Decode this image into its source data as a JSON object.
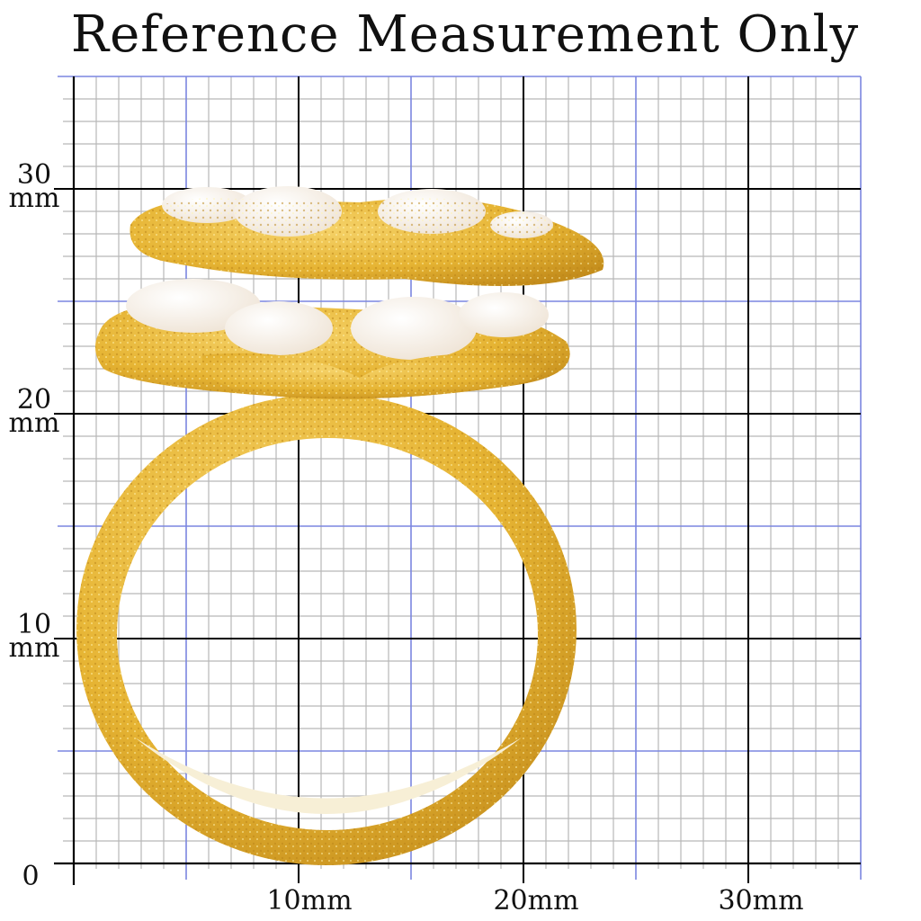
{
  "title": "Reference Measurement Only",
  "unit": "mm",
  "grid": {
    "range_mm": [
      0,
      35
    ],
    "minor_step_mm": 1,
    "mid_step_mm": 5,
    "major_step_mm": 10,
    "colors": {
      "minor": "#b8b8b8",
      "mid": "#7b86e0",
      "major": "#000000"
    }
  },
  "y_labels": [
    {
      "value": "30",
      "unit": "mm"
    },
    {
      "value": "20",
      "unit": "mm"
    },
    {
      "value": "10",
      "unit": "mm"
    }
  ],
  "origin_label": "0",
  "x_labels": [
    "10mm",
    "20mm",
    "30mm"
  ],
  "product": {
    "type": "ring",
    "metal_color": "#e8b93a",
    "stone_color": "#f7f1ea",
    "stone_description_icon": "white-oval-cabochon"
  }
}
